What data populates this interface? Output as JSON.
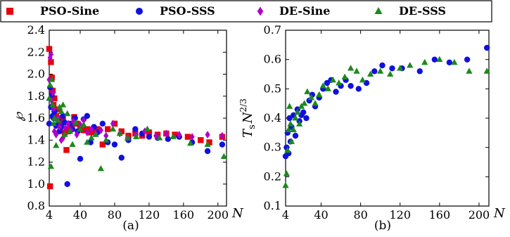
{
  "legend": {
    "entries": [
      {
        "label": "PSO-Sine",
        "color": "#e8000b",
        "marker": "square"
      },
      {
        "label": "PSO-SSS",
        "color": "#1010e0",
        "marker": "circle"
      },
      {
        "label": "DE-Sine",
        "color": "#b000c8",
        "marker": "diamond"
      },
      {
        "label": "DE-SSS",
        "color": "#1a8a1a",
        "marker": "triangle"
      }
    ]
  },
  "chart_data": [
    {
      "type": "scatter",
      "panel_label": "(a)",
      "xlabel": "N",
      "ylabel": "℘",
      "xlim": [
        4,
        210
      ],
      "ylim": [
        0.8,
        2.4
      ],
      "x_ticks": [
        "4",
        "40",
        "80",
        "120",
        "160",
        "200"
      ],
      "x_tick_values": [
        4,
        40,
        80,
        120,
        160,
        200
      ],
      "y_ticks": [
        "0.8",
        "1.0",
        "1.2",
        "1.4",
        "1.6",
        "1.8",
        "2.0",
        "2.2",
        "2.4"
      ],
      "y_tick_values": [
        0.8,
        1.0,
        1.2,
        1.4,
        1.6,
        1.8,
        2.0,
        2.2,
        2.4
      ],
      "grid": false,
      "series": [
        {
          "name": "PSO-Sine",
          "points": [
            [
              4,
              2.23
            ],
            [
              5,
              0.98
            ],
            [
              6,
              2.11
            ],
            [
              7,
              1.97
            ],
            [
              8,
              1.85
            ],
            [
              9,
              1.72
            ],
            [
              10,
              1.78
            ],
            [
              12,
              1.62
            ],
            [
              14,
              1.68
            ],
            [
              16,
              1.55
            ],
            [
              18,
              1.6
            ],
            [
              20,
              1.58
            ],
            [
              22,
              1.47
            ],
            [
              24,
              1.31
            ],
            [
              26,
              1.48
            ],
            [
              28,
              1.5
            ],
            [
              30,
              1.52
            ],
            [
              33,
              1.61
            ],
            [
              36,
              1.55
            ],
            [
              40,
              1.52
            ],
            [
              44,
              1.49
            ],
            [
              48,
              1.5
            ],
            [
              52,
              1.47
            ],
            [
              56,
              1.48
            ],
            [
              60,
              1.5
            ],
            [
              66,
              1.36
            ],
            [
              72,
              1.5
            ],
            [
              80,
              1.55
            ],
            [
              88,
              1.48
            ],
            [
              96,
              1.44
            ],
            [
              104,
              1.46
            ],
            [
              112,
              1.44
            ],
            [
              120,
              1.47
            ],
            [
              130,
              1.45
            ],
            [
              140,
              1.46
            ],
            [
              150,
              1.45
            ],
            [
              165,
              1.43
            ],
            [
              180,
              1.4
            ],
            [
              190,
              1.38
            ],
            [
              205,
              1.43
            ]
          ]
        },
        {
          "name": "PSO-SSS",
          "points": [
            [
              4,
              1.55
            ],
            [
              5,
              1.88
            ],
            [
              6,
              1.7
            ],
            [
              7,
              1.81
            ],
            [
              8,
              1.62
            ],
            [
              9,
              1.6
            ],
            [
              10,
              1.66
            ],
            [
              12,
              1.53
            ],
            [
              14,
              1.58
            ],
            [
              16,
              1.48
            ],
            [
              18,
              1.52
            ],
            [
              20,
              1.62
            ],
            [
              22,
              1.56
            ],
            [
              25,
              1.0
            ],
            [
              28,
              1.55
            ],
            [
              31,
              1.5
            ],
            [
              34,
              1.6
            ],
            [
              37,
              1.48
            ],
            [
              40,
              1.23
            ],
            [
              44,
              1.59
            ],
            [
              48,
              1.62
            ],
            [
              52,
              1.38
            ],
            [
              56,
              1.52
            ],
            [
              60,
              1.47
            ],
            [
              66,
              1.55
            ],
            [
              72,
              1.38
            ],
            [
              80,
              1.36
            ],
            [
              88,
              1.24
            ],
            [
              96,
              1.4
            ],
            [
              104,
              1.5
            ],
            [
              112,
              1.46
            ],
            [
              120,
              1.43
            ],
            [
              130,
              1.42
            ],
            [
              142,
              1.41
            ],
            [
              155,
              1.43
            ],
            [
              170,
              1.38
            ],
            [
              188,
              1.3
            ],
            [
              205,
              1.36
            ]
          ]
        },
        {
          "name": "DE-Sine",
          "points": [
            [
              4,
              1.95
            ],
            [
              5,
              2.15
            ],
            [
              6,
              2.18
            ],
            [
              7,
              1.76
            ],
            [
              8,
              1.83
            ],
            [
              9,
              1.69
            ],
            [
              10,
              1.48
            ],
            [
              12,
              1.45
            ],
            [
              14,
              1.6
            ],
            [
              16,
              1.52
            ],
            [
              18,
              1.4
            ],
            [
              20,
              1.42
            ],
            [
              23,
              1.51
            ],
            [
              26,
              1.55
            ],
            [
              29,
              1.49
            ],
            [
              32,
              1.57
            ],
            [
              36,
              1.45
            ],
            [
              40,
              1.54
            ],
            [
              44,
              1.58
            ],
            [
              48,
              1.47
            ],
            [
              53,
              1.5
            ],
            [
              58,
              1.46
            ],
            [
              64,
              1.49
            ],
            [
              70,
              1.44
            ],
            [
              78,
              1.55
            ],
            [
              86,
              1.46
            ],
            [
              95,
              1.42
            ],
            [
              105,
              1.45
            ],
            [
              115,
              1.48
            ],
            [
              128,
              1.44
            ],
            [
              140,
              1.46
            ],
            [
              155,
              1.45
            ],
            [
              170,
              1.43
            ],
            [
              188,
              1.45
            ],
            [
              205,
              1.44
            ]
          ]
        },
        {
          "name": "DE-SSS",
          "points": [
            [
              4,
              1.78
            ],
            [
              5,
              1.9
            ],
            [
              6,
              1.16
            ],
            [
              7,
              1.95
            ],
            [
              8,
              1.72
            ],
            [
              9,
              1.55
            ],
            [
              10,
              1.6
            ],
            [
              12,
              1.35
            ],
            [
              14,
              1.58
            ],
            [
              16,
              1.7
            ],
            [
              18,
              1.66
            ],
            [
              20,
              1.72
            ],
            [
              22,
              1.45
            ],
            [
              25,
              1.64
            ],
            [
              28,
              1.48
            ],
            [
              31,
              1.36
            ],
            [
              35,
              1.56
            ],
            [
              40,
              1.5
            ],
            [
              44,
              1.54
            ],
            [
              48,
              1.38
            ],
            [
              53,
              1.42
            ],
            [
              58,
              1.45
            ],
            [
              64,
              1.14
            ],
            [
              70,
              1.4
            ],
            [
              78,
              1.5
            ],
            [
              86,
              1.46
            ],
            [
              95,
              1.42
            ],
            [
              105,
              1.43
            ],
            [
              118,
              1.5
            ],
            [
              132,
              1.42
            ],
            [
              148,
              1.43
            ],
            [
              168,
              1.37
            ],
            [
              188,
              1.36
            ],
            [
              207,
              1.25
            ]
          ]
        }
      ]
    },
    {
      "type": "scatter",
      "panel_label": "(b)",
      "xlabel": "N",
      "ylabel": "T_s N^{2/3}",
      "ylabel_display": {
        "T": "T",
        "s": "s",
        "N": "N",
        "exp": "2/3"
      },
      "xlim": [
        4,
        210
      ],
      "ylim": [
        0.1,
        0.7
      ],
      "x_ticks": [
        "4",
        "40",
        "80",
        "120",
        "160",
        "200"
      ],
      "x_tick_values": [
        4,
        40,
        80,
        120,
        160,
        200
      ],
      "y_ticks": [
        "0.1",
        "0.2",
        "0.3",
        "0.4",
        "0.5",
        "0.6",
        "0.7"
      ],
      "y_tick_values": [
        0.1,
        0.2,
        0.3,
        0.4,
        0.5,
        0.6,
        0.7
      ],
      "grid": false,
      "series": [
        {
          "name": "PSO-SSS",
          "points": [
            [
              4,
              0.27
            ],
            [
              5,
              0.3
            ],
            [
              6,
              0.35
            ],
            [
              7,
              0.28
            ],
            [
              8,
              0.4
            ],
            [
              9,
              0.32
            ],
            [
              10,
              0.37
            ],
            [
              12,
              0.41
            ],
            [
              14,
              0.34
            ],
            [
              16,
              0.43
            ],
            [
              18,
              0.39
            ],
            [
              20,
              0.41
            ],
            [
              22,
              0.42
            ],
            [
              25,
              0.4
            ],
            [
              28,
              0.46
            ],
            [
              31,
              0.48
            ],
            [
              34,
              0.44
            ],
            [
              38,
              0.47
            ],
            [
              42,
              0.5
            ],
            [
              46,
              0.52
            ],
            [
              50,
              0.53
            ],
            [
              55,
              0.49
            ],
            [
              60,
              0.51
            ],
            [
              65,
              0.53
            ],
            [
              70,
              0.51
            ],
            [
              78,
              0.5
            ],
            [
              86,
              0.52
            ],
            [
              94,
              0.56
            ],
            [
              102,
              0.58
            ],
            [
              112,
              0.57
            ],
            [
              122,
              0.57
            ],
            [
              140,
              0.56
            ],
            [
              155,
              0.6
            ],
            [
              170,
              0.59
            ],
            [
              188,
              0.6
            ],
            [
              208,
              0.64
            ]
          ]
        },
        {
          "name": "DE-SSS",
          "points": [
            [
              4,
              0.17
            ],
            [
              5,
              0.21
            ],
            [
              6,
              0.29
            ],
            [
              7,
              0.36
            ],
            [
              8,
              0.44
            ],
            [
              9,
              0.38
            ],
            [
              10,
              0.32
            ],
            [
              12,
              0.36
            ],
            [
              14,
              0.4
            ],
            [
              16,
              0.42
            ],
            [
              18,
              0.38
            ],
            [
              20,
              0.44
            ],
            [
              23,
              0.45
            ],
            [
              26,
              0.49
            ],
            [
              30,
              0.47
            ],
            [
              34,
              0.45
            ],
            [
              38,
              0.48
            ],
            [
              42,
              0.51
            ],
            [
              47,
              0.5
            ],
            [
              52,
              0.53
            ],
            [
              58,
              0.52
            ],
            [
              64,
              0.54
            ],
            [
              70,
              0.57
            ],
            [
              76,
              0.56
            ],
            [
              82,
              0.53
            ],
            [
              90,
              0.55
            ],
            [
              100,
              0.56
            ],
            [
              110,
              0.55
            ],
            [
              120,
              0.57
            ],
            [
              130,
              0.58
            ],
            [
              145,
              0.59
            ],
            [
              160,
              0.6
            ],
            [
              175,
              0.59
            ],
            [
              190,
              0.56
            ],
            [
              208,
              0.56
            ]
          ]
        }
      ]
    }
  ]
}
